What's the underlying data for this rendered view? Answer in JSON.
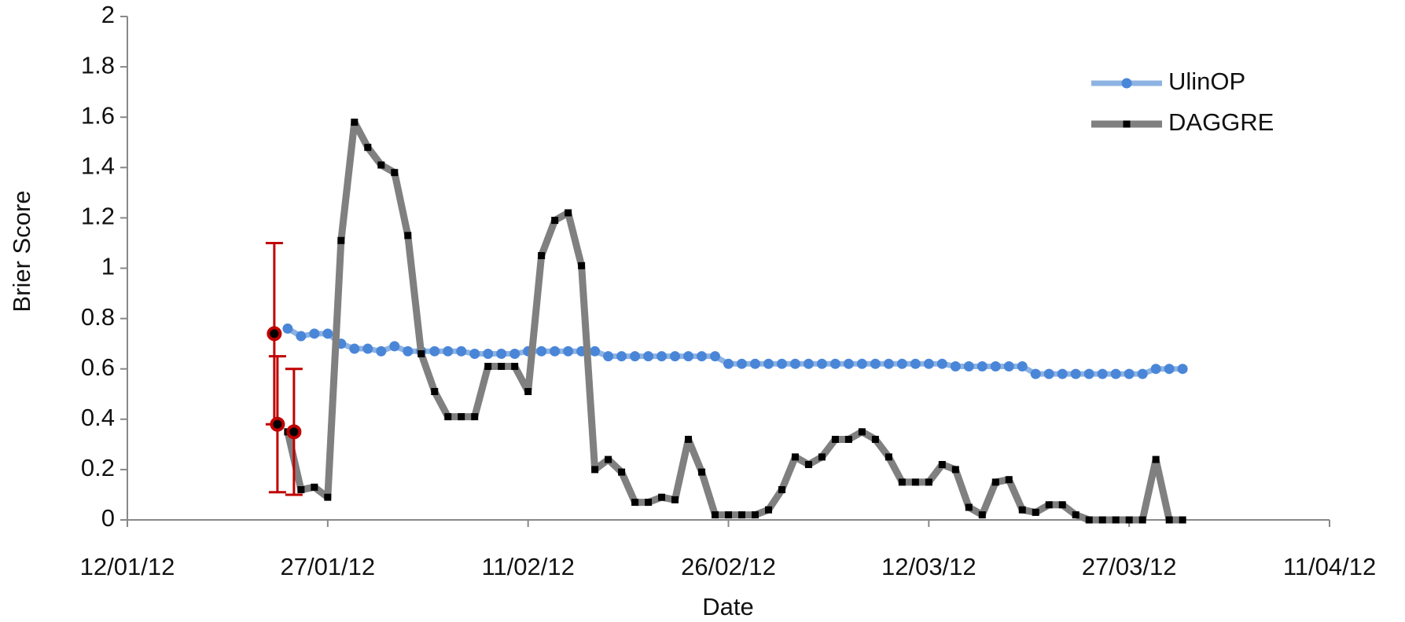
{
  "chart_data": {
    "type": "line",
    "x_label": "Date",
    "y_label": "Brier Score",
    "x": [
      "2012-01-24",
      "2012-01-25",
      "2012-01-26",
      "2012-01-27",
      "2012-01-28",
      "2012-01-29",
      "2012-01-30",
      "2012-01-31",
      "2012-02-01",
      "2012-02-02",
      "2012-02-03",
      "2012-02-04",
      "2012-02-05",
      "2012-02-06",
      "2012-02-07",
      "2012-02-08",
      "2012-02-09",
      "2012-02-10",
      "2012-02-11",
      "2012-02-12",
      "2012-02-13",
      "2012-02-14",
      "2012-02-15",
      "2012-02-16",
      "2012-02-17",
      "2012-02-18",
      "2012-02-19",
      "2012-02-20",
      "2012-02-21",
      "2012-02-22",
      "2012-02-23",
      "2012-02-24",
      "2012-02-25",
      "2012-02-26",
      "2012-02-27",
      "2012-02-28",
      "2012-02-29",
      "2012-03-01",
      "2012-03-02",
      "2012-03-03",
      "2012-03-04",
      "2012-03-05",
      "2012-03-06",
      "2012-03-07",
      "2012-03-08",
      "2012-03-09",
      "2012-03-10",
      "2012-03-11",
      "2012-03-12",
      "2012-03-13",
      "2012-03-14",
      "2012-03-15",
      "2012-03-16",
      "2012-03-17",
      "2012-03-18",
      "2012-03-19",
      "2012-03-20",
      "2012-03-21",
      "2012-03-22",
      "2012-03-23",
      "2012-03-24",
      "2012-03-25",
      "2012-03-26",
      "2012-03-27",
      "2012-03-28",
      "2012-03-29",
      "2012-03-30",
      "2012-03-31"
    ],
    "series": [
      {
        "name": "UlinOP",
        "color": "#8db3e2",
        "marker_color": "#4a86d8",
        "marker": "circle",
        "values": [
          0.76,
          0.73,
          0.74,
          0.74,
          0.7,
          0.68,
          0.68,
          0.67,
          0.69,
          0.67,
          0.67,
          0.67,
          0.67,
          0.67,
          0.66,
          0.66,
          0.66,
          0.66,
          0.67,
          0.67,
          0.67,
          0.67,
          0.67,
          0.67,
          0.65,
          0.65,
          0.65,
          0.65,
          0.65,
          0.65,
          0.65,
          0.65,
          0.65,
          0.62,
          0.62,
          0.62,
          0.62,
          0.62,
          0.62,
          0.62,
          0.62,
          0.62,
          0.62,
          0.62,
          0.62,
          0.62,
          0.62,
          0.62,
          0.62,
          0.62,
          0.61,
          0.61,
          0.61,
          0.61,
          0.61,
          0.61,
          0.58,
          0.58,
          0.58,
          0.58,
          0.58,
          0.58,
          0.58,
          0.58,
          0.58,
          0.6,
          0.6,
          0.6
        ]
      },
      {
        "name": "DAGGRE",
        "color": "#808080",
        "marker_color": "#000000",
        "marker": "square",
        "values": [
          0.35,
          0.12,
          0.13,
          0.09,
          1.11,
          1.58,
          1.48,
          1.41,
          1.38,
          1.13,
          0.66,
          0.51,
          0.41,
          0.41,
          0.41,
          0.61,
          0.61,
          0.61,
          0.51,
          1.05,
          1.19,
          1.22,
          1.01,
          0.2,
          0.24,
          0.19,
          0.07,
          0.07,
          0.09,
          0.08,
          0.32,
          0.19,
          0.02,
          0.02,
          0.02,
          0.02,
          0.04,
          0.12,
          0.25,
          0.22,
          0.25,
          0.32,
          0.32,
          0.35,
          0.32,
          0.25,
          0.15,
          0.15,
          0.15,
          0.22,
          0.2,
          0.05,
          0.02,
          0.15,
          0.16,
          0.04,
          0.03,
          0.06,
          0.06,
          0.02,
          0,
          0,
          0,
          0,
          0,
          0.24,
          0,
          0
        ]
      }
    ],
    "error_points": {
      "color": "#c00000",
      "x": [
        "2012-01-23",
        "2012-01-23",
        "2012-01-24"
      ],
      "values": [
        0.74,
        0.38,
        0.35
      ],
      "errors": [
        0.36,
        0.27,
        0.25
      ]
    },
    "xlim": [
      "2012-01-12",
      "2012-04-11"
    ],
    "xticks": [
      {
        "value": "2012-01-12",
        "label": "12/01/12"
      },
      {
        "value": "2012-01-27",
        "label": "27/01/12"
      },
      {
        "value": "2012-02-11",
        "label": "11/02/12"
      },
      {
        "value": "2012-02-26",
        "label": "26/02/12"
      },
      {
        "value": "2012-03-12",
        "label": "12/03/12"
      },
      {
        "value": "2012-03-27",
        "label": "27/03/12"
      },
      {
        "value": "2012-04-11",
        "label": "11/04/12"
      }
    ],
    "ylim": [
      0,
      2
    ],
    "yticks": [
      0,
      0.2,
      0.4,
      0.6,
      0.8,
      1,
      1.2,
      1.4,
      1.6,
      1.8,
      2
    ],
    "legend": "top-right"
  }
}
